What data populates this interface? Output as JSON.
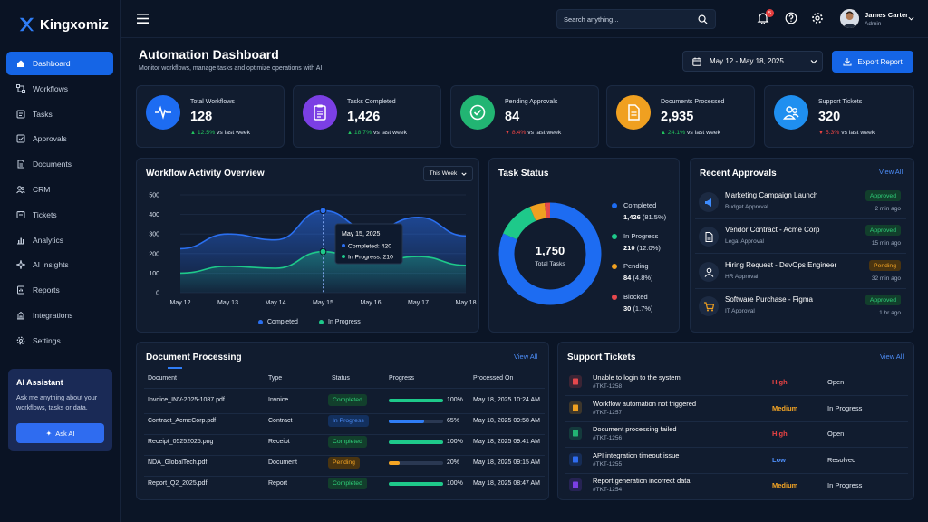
{
  "app": {
    "name": "Kingxomiz"
  },
  "sidebar": {
    "items": [
      {
        "label": "Dashboard",
        "icon": "home-icon",
        "active": true
      },
      {
        "label": "Workflows",
        "icon": "workflow-icon"
      },
      {
        "label": "Tasks",
        "icon": "tasks-icon"
      },
      {
        "label": "Approvals",
        "icon": "approvals-icon"
      },
      {
        "label": "Documents",
        "icon": "documents-icon"
      },
      {
        "label": "CRM",
        "icon": "crm-icon"
      },
      {
        "label": "Tickets",
        "icon": "tickets-icon"
      },
      {
        "label": "Analytics",
        "icon": "analytics-icon"
      },
      {
        "label": "AI Insights",
        "icon": "ai-insights-icon"
      },
      {
        "label": "Reports",
        "icon": "reports-icon"
      },
      {
        "label": "Integrations",
        "icon": "integrations-icon"
      },
      {
        "label": "Settings",
        "icon": "settings-icon"
      }
    ],
    "assistant": {
      "title": "AI Assistant",
      "text": "Ask me anything about your workflows, tasks or data.",
      "button": "Ask AI"
    }
  },
  "topbar": {
    "search_placeholder": "Search anything...",
    "notification_count": "5",
    "user": {
      "name": "James Carter",
      "role": "Admin"
    }
  },
  "header": {
    "title": "Automation Dashboard",
    "subtitle": "Monitor workflows, manage tasks and optimize operations with AI",
    "date_range": "May 12 - May 18, 2025",
    "export_label": "Export Report"
  },
  "stats": [
    {
      "label": "Total Workflows",
      "value": "128",
      "delta": "12.5%",
      "trend": "up",
      "suffix": "vs last week",
      "color": "#1d6cf2",
      "icon": "pulse-icon"
    },
    {
      "label": "Tasks Completed",
      "value": "1,426",
      "delta": "18.7%",
      "trend": "up",
      "suffix": "vs last week",
      "color": "#7b3fe4",
      "icon": "clipboard-icon"
    },
    {
      "label": "Pending Approvals",
      "value": "84",
      "delta": "8.4%",
      "trend": "down",
      "suffix": "vs last week",
      "color": "#22b573",
      "icon": "check-circle-icon"
    },
    {
      "label": "Documents Processed",
      "value": "2,935",
      "delta": "24.1%",
      "trend": "up",
      "suffix": "vs last week",
      "color": "#f0a020",
      "icon": "document-icon"
    },
    {
      "label": "Support Tickets",
      "value": "320",
      "delta": "5.3%",
      "trend": "down",
      "suffix": "vs last week",
      "color": "#1f8ff0",
      "icon": "users-icon"
    }
  ],
  "activity": {
    "title": "Workflow Activity Overview",
    "range_select": "This Week",
    "tooltip": {
      "date": "May 15, 2025",
      "completed": "Completed: 420",
      "in_progress": "In Progress: 210"
    }
  },
  "chart_data": {
    "type": "area",
    "categories": [
      "May 12",
      "May 13",
      "May 14",
      "May 15",
      "May 16",
      "May 17",
      "May 18"
    ],
    "yticks": [
      0,
      100,
      200,
      300,
      400,
      500
    ],
    "ylim": [
      0,
      500
    ],
    "series": [
      {
        "name": "Completed",
        "color": "#2a6ff0",
        "values": [
          225,
          300,
          270,
          420,
          320,
          385,
          290
        ]
      },
      {
        "name": "In Progress",
        "color": "#1ec98a",
        "values": [
          100,
          135,
          125,
          210,
          150,
          185,
          140
        ]
      }
    ]
  },
  "task_status": {
    "title": "Task Status",
    "total": "1,750",
    "total_label": "Total Tasks",
    "items": [
      {
        "name": "Completed",
        "count": "1,426",
        "pct": "(81.5%)",
        "value": 81.5,
        "color": "#1d6cf2"
      },
      {
        "name": "In Progress",
        "count": "210",
        "pct": "(12.0%)",
        "value": 12.0,
        "color": "#1ec98a"
      },
      {
        "name": "Pending",
        "count": "84",
        "pct": "(4.8%)",
        "value": 4.8,
        "color": "#f0a020"
      },
      {
        "name": "Blocked",
        "count": "30",
        "pct": "(1.7%)",
        "value": 1.7,
        "color": "#e5484d"
      }
    ]
  },
  "approvals": {
    "title": "Recent Approvals",
    "view_all": "View All",
    "items": [
      {
        "title": "Marketing Campaign Launch",
        "sub": "Budget Approval",
        "status": "Approved",
        "time": "2 min ago",
        "icon": "megaphone-icon"
      },
      {
        "title": "Vendor Contract - Acme Corp",
        "sub": "Legal Approval",
        "status": "Approved",
        "time": "15 min ago",
        "icon": "contract-icon"
      },
      {
        "title": "Hiring Request - DevOps Engineer",
        "sub": "HR Approval",
        "status": "Pending",
        "time": "32 min ago",
        "icon": "person-icon"
      },
      {
        "title": "Software Purchase - Figma",
        "sub": "IT Approval",
        "status": "Approved",
        "time": "1 hr ago",
        "icon": "cart-icon"
      }
    ]
  },
  "documents": {
    "title": "Document Processing",
    "view_all": "View All",
    "columns": [
      "Document",
      "Type",
      "Status",
      "Progress",
      "Processed On"
    ],
    "rows": [
      {
        "name": "Invoice_INV-2025-1087.pdf",
        "type": "Invoice",
        "status": "Completed",
        "progress": 100,
        "progress_label": "100%",
        "date": "May 18, 2025 10:24 AM"
      },
      {
        "name": "Contract_AcmeCorp.pdf",
        "type": "Contract",
        "status": "In Progress",
        "progress": 65,
        "progress_label": "65%",
        "date": "May 18, 2025 09:58 AM"
      },
      {
        "name": "Receipt_05252025.png",
        "type": "Receipt",
        "status": "Completed",
        "progress": 100,
        "progress_label": "100%",
        "date": "May 18, 2025 09:41 AM"
      },
      {
        "name": "NDA_GlobalTech.pdf",
        "type": "Document",
        "status": "Pending",
        "progress": 20,
        "progress_label": "20%",
        "date": "May 18, 2025 09:15 AM"
      },
      {
        "name": "Report_Q2_2025.pdf",
        "type": "Report",
        "status": "Completed",
        "progress": 100,
        "progress_label": "100%",
        "date": "May 18, 2025 08:47 AM"
      }
    ]
  },
  "tickets": {
    "title": "Support Tickets",
    "view_all": "View All",
    "items": [
      {
        "title": "Unable to login to the system",
        "id": "#TKT-1258",
        "priority": "High",
        "status": "Open",
        "color": "#e5484d"
      },
      {
        "title": "Workflow automation not triggered",
        "id": "#TKT-1257",
        "priority": "Medium",
        "status": "In Progress",
        "color": "#f0a020"
      },
      {
        "title": "Document processing failed",
        "id": "#TKT-1256",
        "priority": "High",
        "status": "Open",
        "color": "#22b573"
      },
      {
        "title": "API integration timeout issue",
        "id": "#TKT-1255",
        "priority": "Low",
        "status": "Resolved",
        "color": "#2f6cf0"
      },
      {
        "title": "Report generation incorrect data",
        "id": "#TKT-1254",
        "priority": "Medium",
        "status": "In Progress",
        "color": "#7b3fe4"
      }
    ]
  }
}
